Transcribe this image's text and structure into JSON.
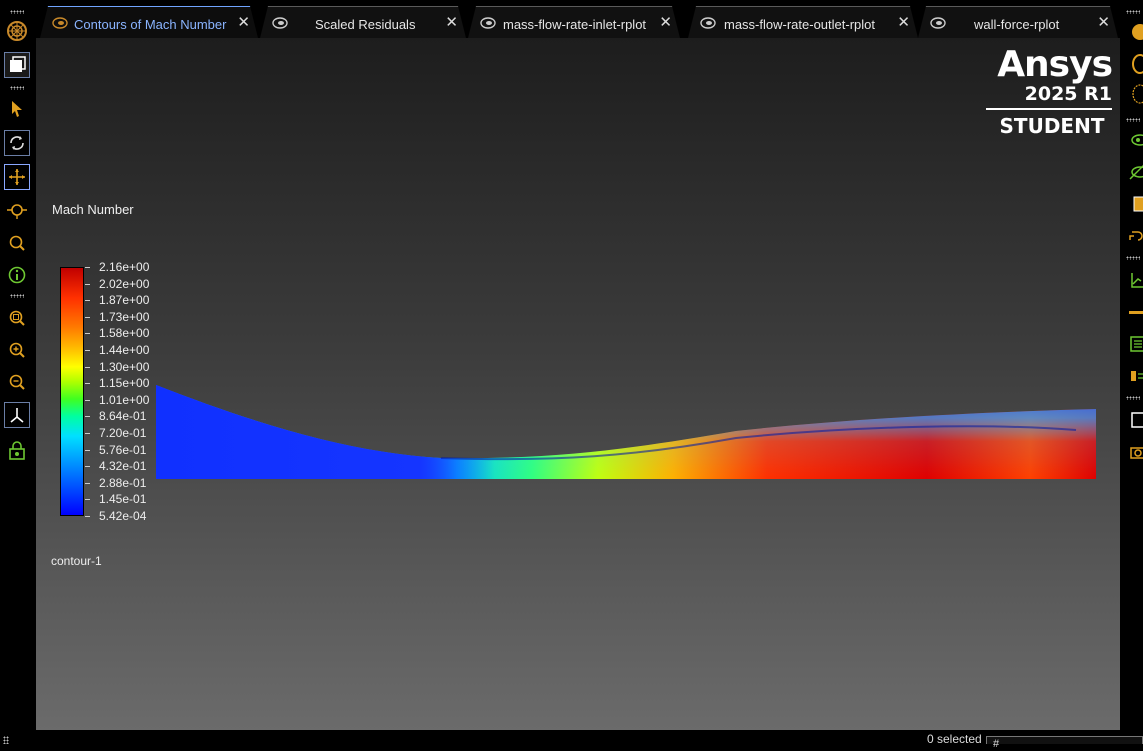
{
  "tabs": [
    {
      "label": "Contours of Mach Number",
      "active": true
    },
    {
      "label": "Scaled Residuals",
      "active": false
    },
    {
      "label": "mass-flow-rate-inlet-rplot",
      "active": false
    },
    {
      "label": "mass-flow-rate-outlet-rplot",
      "active": false
    },
    {
      "label": "wall-force-rplot",
      "active": false
    }
  ],
  "brand": {
    "name": "Ansys",
    "version": "2025 R1",
    "edition": "STUDENT"
  },
  "legend": {
    "title": "Mach Number",
    "labels": [
      "2.16e+00",
      "2.02e+00",
      "1.87e+00",
      "1.73e+00",
      "1.58e+00",
      "1.44e+00",
      "1.30e+00",
      "1.15e+00",
      "1.01e+00",
      "8.64e-01",
      "7.20e-01",
      "5.76e-01",
      "4.32e-01",
      "2.88e-01",
      "1.45e-01",
      "5.42e-04"
    ]
  },
  "contour_name": "contour-1",
  "status": {
    "selected": "0 selected",
    "field": "#"
  },
  "colors": {
    "accent": "#8ab4ff",
    "brand_icon": "#c8892a"
  },
  "left_toolbar_icons": [
    "fluent-logo-icon",
    "graphics-window-icon",
    "select-arrow-icon",
    "rotate-icon",
    "pan-icon",
    "zoom-point-icon",
    "zoom-icon",
    "probe-info-icon",
    "zoom-box-icon",
    "zoom-in-icon",
    "zoom-out-icon",
    "axes-icon",
    "lock-view-icon"
  ],
  "right_toolbar_icons": [
    "shade-icon",
    "ellipse-icon",
    "mesh-icon",
    "eye-icon",
    "hide-icon",
    "box-icon",
    "undo-icon",
    "axes-plot-icon",
    "slider-icon",
    "list-icon",
    "toggle-icon",
    "window-icon",
    "camera-icon"
  ]
}
